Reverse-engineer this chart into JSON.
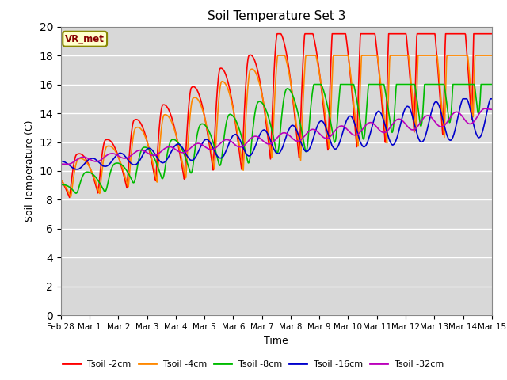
{
  "title": "Soil Temperature Set 3",
  "xlabel": "Time",
  "ylabel": "Soil Temperature (C)",
  "ylim": [
    0,
    20
  ],
  "yticks": [
    0,
    2,
    4,
    6,
    8,
    10,
    12,
    14,
    16,
    18,
    20
  ],
  "background_color": "#d8d8d8",
  "legend_label": "VR_met",
  "series_colors": [
    "#ff0000",
    "#ff8800",
    "#00bb00",
    "#0000cc",
    "#bb00bb"
  ],
  "series_labels": [
    "Tsoil -2cm",
    "Tsoil -4cm",
    "Tsoil -8cm",
    "Tsoil -16cm",
    "Tsoil -32cm"
  ],
  "x_tick_labels": [
    "Feb 28",
    "Mar 1",
    "Mar 2",
    "Mar 3",
    "Mar 4",
    "Mar 5",
    "Mar 6",
    "Mar 7",
    "Mar 8",
    "Mar 9",
    "Mar 10",
    "Mar 11",
    "Mar 12",
    "Mar 13",
    "Mar 14",
    "Mar 15"
  ],
  "n_points": 1000
}
